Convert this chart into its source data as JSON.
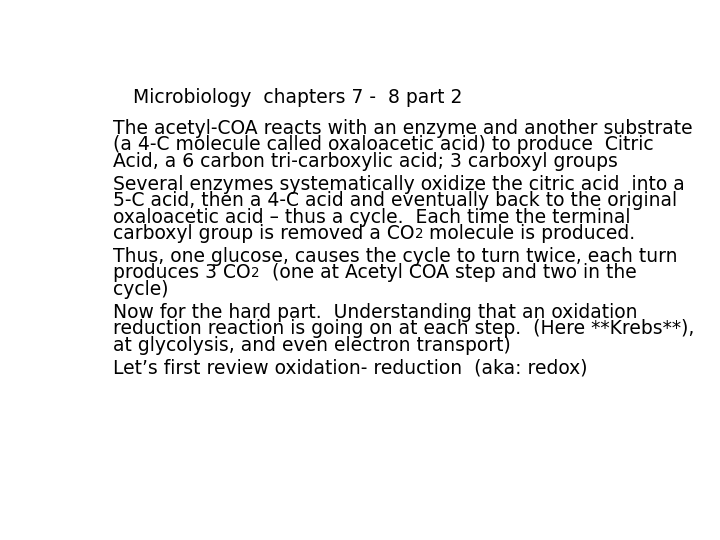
{
  "title": "Microbiology  chapters 7 -  8 part 2",
  "background_color": "#ffffff",
  "text_color": "#000000",
  "body_fontsize": 13.5,
  "title_fontsize": 13.5,
  "font_family": "DejaVu Sans",
  "paragraphs": [
    {
      "lines": [
        {
          "text": "The acetyl-COA reacts with an enzyme and another substrate",
          "sub": null,
          "suffix": null
        },
        {
          "text": "(a 4-C molecule called oxaloacetic acid) to produce  Citric",
          "sub": null,
          "suffix": null
        },
        {
          "text": "Acid, a 6 carbon tri-carboxylic acid; 3 carboxyl groups",
          "sub": null,
          "suffix": null
        }
      ]
    },
    {
      "lines": [
        {
          "text": "Several enzymes systematically oxidize the citric acid  into a",
          "sub": null,
          "suffix": null
        },
        {
          "text": "5-C acid, then a 4-C acid and eventually back to the original",
          "sub": null,
          "suffix": null
        },
        {
          "text": "oxaloacetic acid – thus a cycle.  Each time the terminal",
          "sub": null,
          "suffix": null
        },
        {
          "text": "carboxyl group is removed a CO",
          "sub": "2",
          "suffix": " molecule is produced."
        }
      ]
    },
    {
      "lines": [
        {
          "text": "Thus, one glucose, causes the cycle to turn twice, each turn",
          "sub": null,
          "suffix": null
        },
        {
          "text": "produces 3 CO",
          "sub": "2",
          "suffix": "  (one at Acetyl COA step and two in the"
        },
        {
          "text": "cycle)",
          "sub": null,
          "suffix": null
        }
      ]
    },
    {
      "lines": [
        {
          "text": "Now for the hard part.  Understanding that an oxidation",
          "sub": null,
          "suffix": null
        },
        {
          "text": "reduction reaction is going on at each step.  (Here **Krebs**),",
          "sub": null,
          "suffix": null
        },
        {
          "text": "at glycolysis, and even electron transport)",
          "sub": null,
          "suffix": null
        }
      ]
    },
    {
      "lines": [
        {
          "text": "Let’s first review oxidation- reduction  (aka: redox)",
          "sub": null,
          "suffix": null
        }
      ]
    }
  ]
}
